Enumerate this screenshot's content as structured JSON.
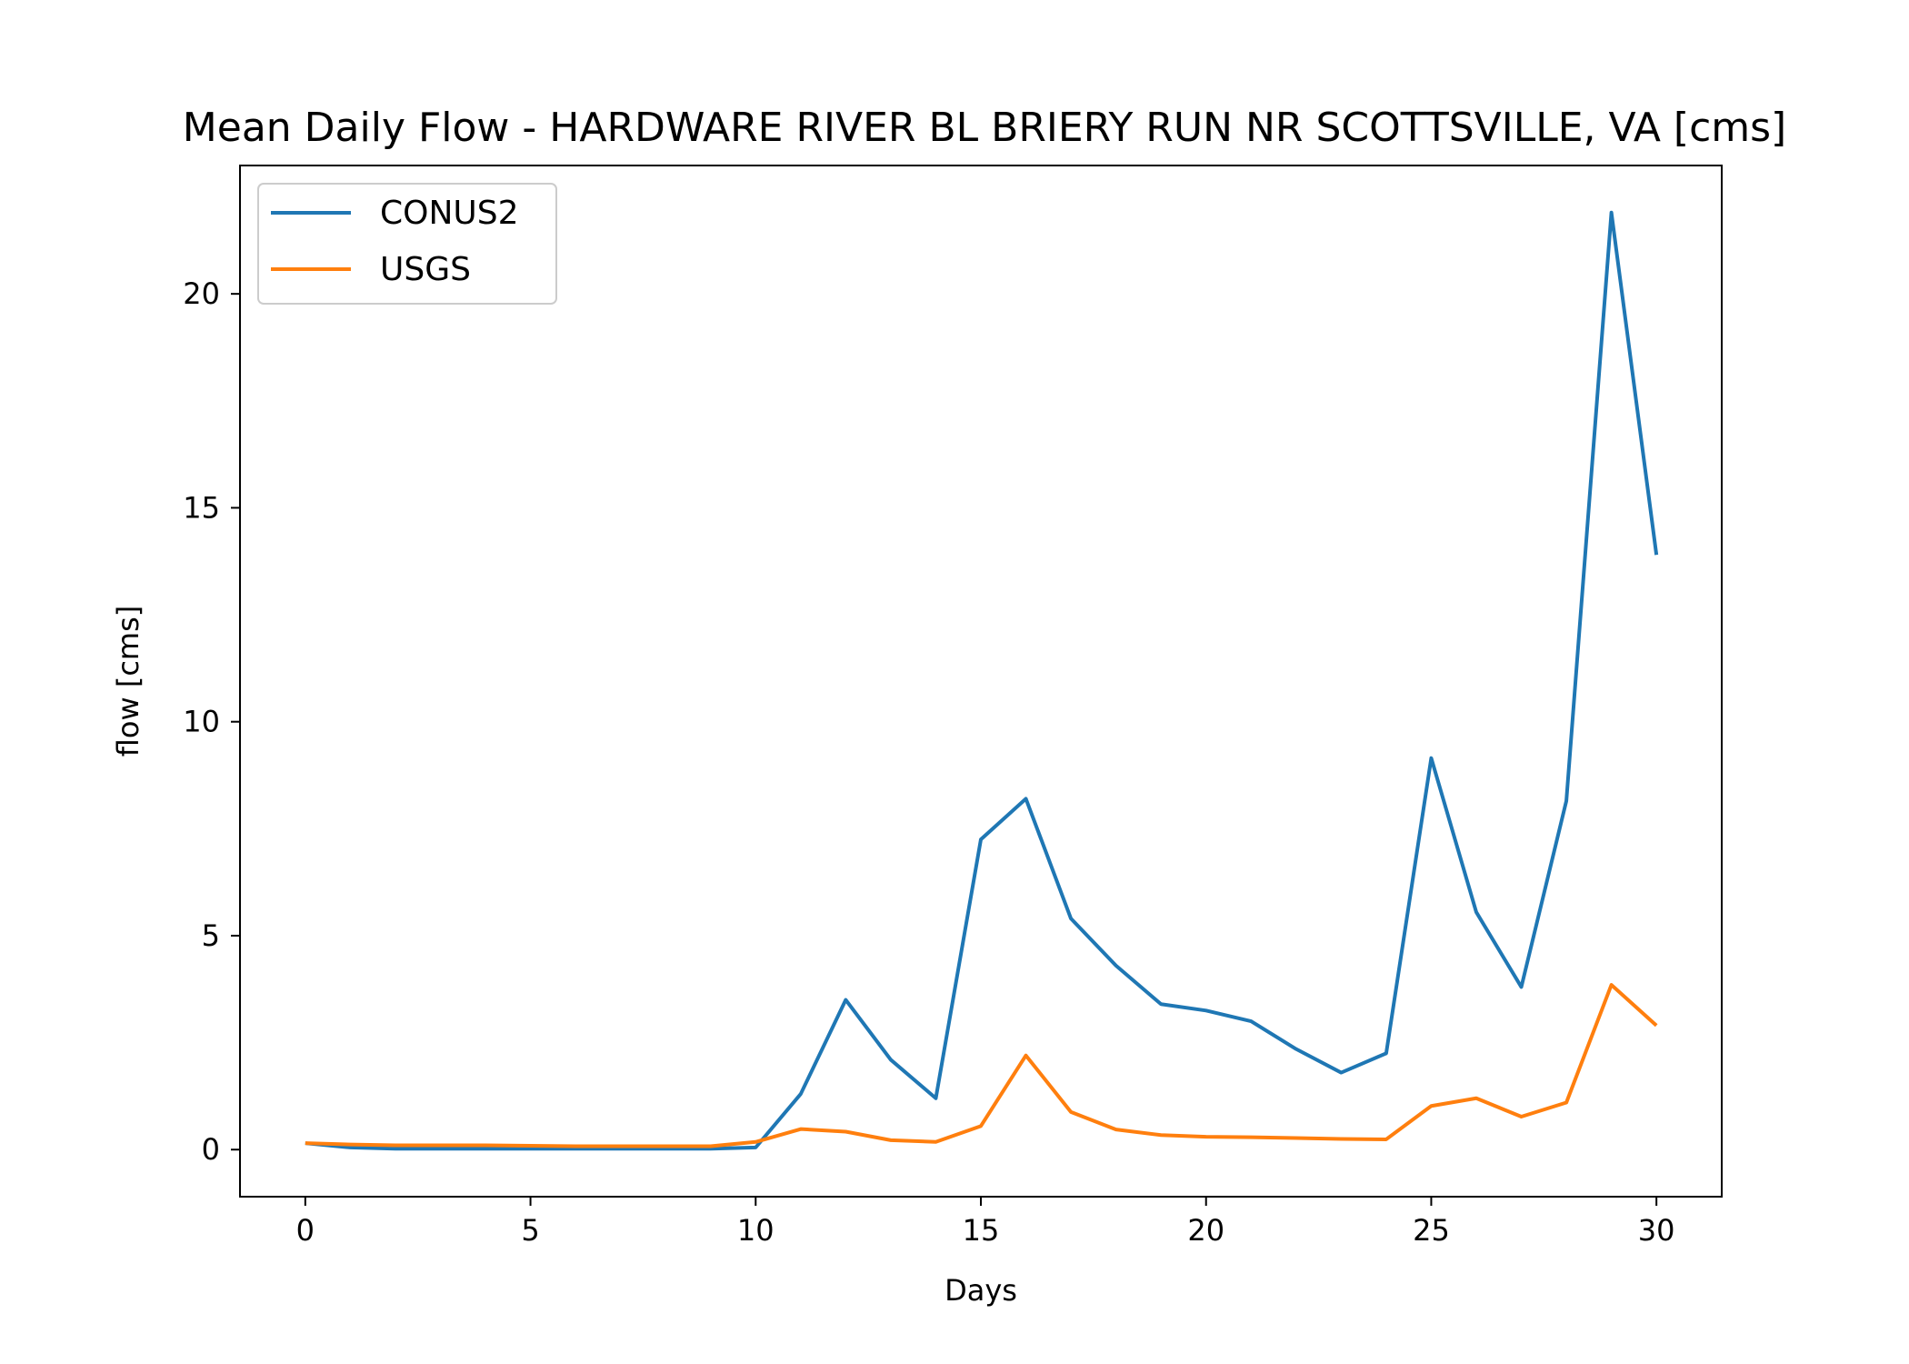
{
  "chart_data": {
    "type": "line",
    "title": "Mean Daily Flow - HARDWARE RIVER BL BRIERY RUN NR SCOTTSVILLE, VA [cms]",
    "xlabel": "Days",
    "ylabel": "flow [cms]",
    "xlim": [
      -1.45,
      31.45
    ],
    "ylim": [
      -1.1,
      23.0
    ],
    "xticks": [
      0,
      5,
      10,
      15,
      20,
      25,
      30
    ],
    "yticks": [
      0,
      5,
      10,
      15,
      20
    ],
    "grid": false,
    "legend": "top-left",
    "x": [
      0,
      1,
      2,
      3,
      4,
      5,
      6,
      7,
      8,
      9,
      10,
      11,
      12,
      13,
      14,
      15,
      16,
      17,
      18,
      19,
      20,
      21,
      22,
      23,
      24,
      25,
      26,
      27,
      28,
      29,
      30
    ],
    "series": [
      {
        "name": "CONUS2",
        "color": "#1f77b4",
        "values": [
          0.15,
          0.05,
          0.02,
          0.02,
          0.02,
          0.02,
          0.02,
          0.02,
          0.02,
          0.02,
          0.05,
          1.3,
          3.5,
          2.1,
          1.2,
          7.25,
          8.2,
          5.4,
          4.3,
          3.4,
          3.25,
          3.0,
          2.35,
          1.8,
          2.25,
          9.15,
          5.55,
          3.8,
          8.15,
          21.9,
          13.9
        ]
      },
      {
        "name": "USGS",
        "color": "#ff7f0e",
        "values": [
          0.15,
          0.12,
          0.1,
          0.1,
          0.1,
          0.09,
          0.08,
          0.08,
          0.08,
          0.08,
          0.18,
          0.48,
          0.42,
          0.22,
          0.18,
          0.55,
          2.2,
          0.88,
          0.47,
          0.34,
          0.3,
          0.29,
          0.27,
          0.25,
          0.24,
          1.02,
          1.2,
          0.77,
          1.1,
          3.85,
          2.9
        ]
      }
    ]
  }
}
